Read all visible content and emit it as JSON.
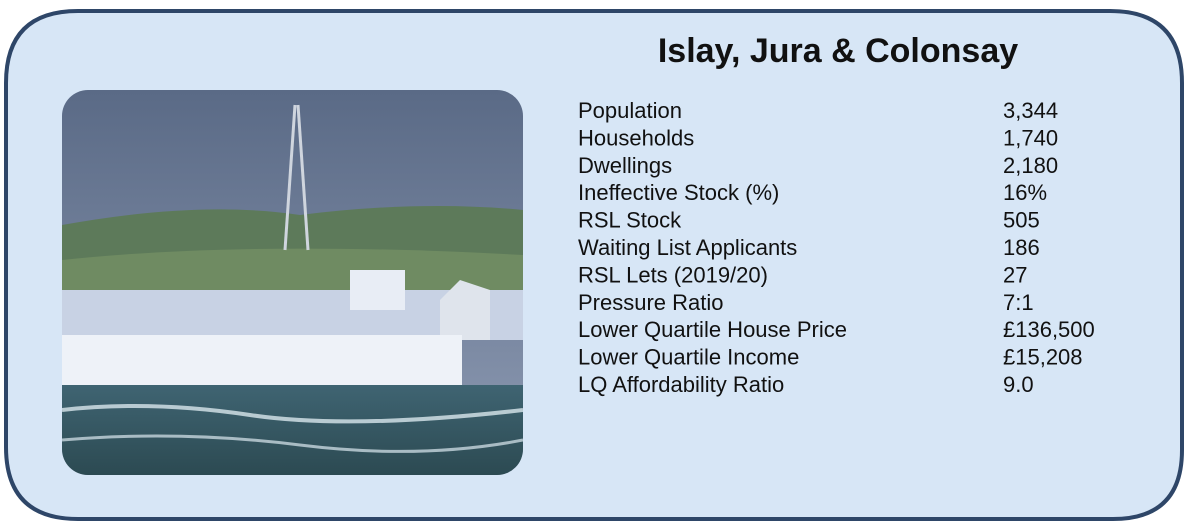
{
  "title": "Islay, Jura & Colonsay",
  "rows": [
    [
      "Population",
      "3,344"
    ],
    [
      "Households",
      "1,740"
    ],
    [
      "Dwellings",
      "2,180"
    ],
    [
      "Ineffective Stock (%)",
      "16%"
    ],
    [
      "RSL Stock",
      "505"
    ],
    [
      "Waiting List Applicants",
      "186"
    ],
    [
      "RSL Lets (2019/20)",
      "27"
    ],
    [
      "Pressure Ratio",
      "7:1"
    ],
    [
      "Lower Quartile House Price",
      "£136,500"
    ],
    [
      "Lower Quartile Income",
      "£15,208"
    ],
    [
      "LQ Affordability Ratio",
      "9.0"
    ]
  ]
}
